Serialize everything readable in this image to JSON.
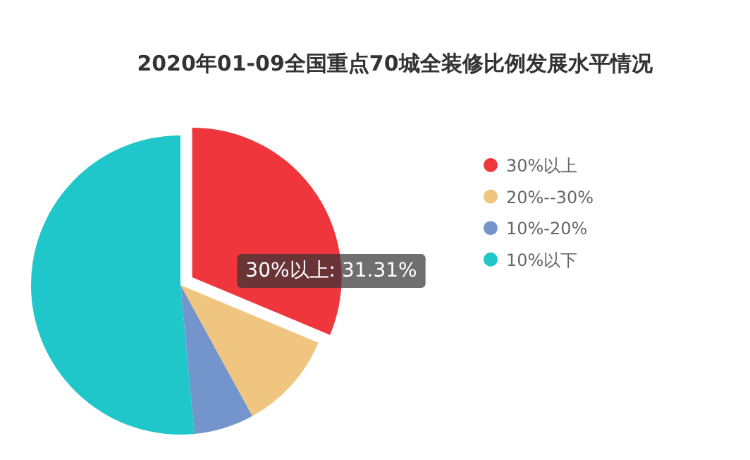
{
  "chart_data": {
    "type": "pie",
    "title": "2020年01-09全国重点70城全装修比例发展水平情况",
    "categories": [
      "30%以上",
      "20%--30%",
      "10%-20%",
      "10%以下"
    ],
    "values": [
      31.31,
      10.7,
      6.5,
      51.49
    ],
    "colors": [
      "#ef363c",
      "#f0c580",
      "#7495cc",
      "#1fc7cb"
    ],
    "value_labels": [
      "30%以上: 31.31%",
      null,
      null,
      null
    ],
    "legend": "right"
  }
}
